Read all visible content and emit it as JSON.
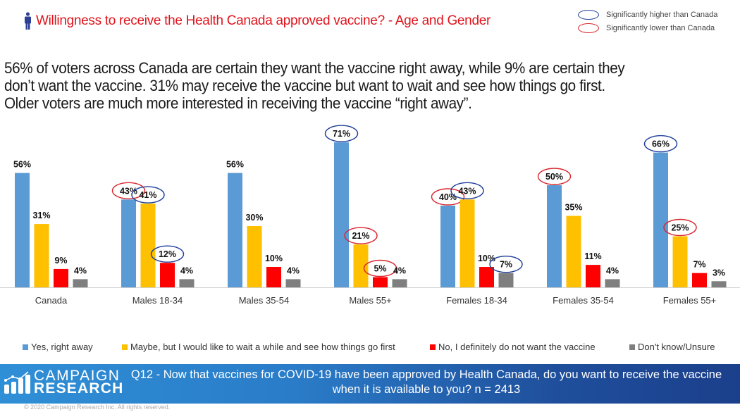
{
  "header": {
    "title": "Willingness to receive the Health Canada approved vaccine? - Age and Gender",
    "icon": "person-icon"
  },
  "significance_legend": {
    "higher": {
      "label": "Significantly higher than Canada",
      "color": "#1f3f9a"
    },
    "lower": {
      "label": "Significantly lower than Canada",
      "color": "#d9262e"
    }
  },
  "summary": [
    "56% of voters across Canada are certain they want the vaccine right away, while 9% are certain they",
    "don’t want the vaccine. 31% may receive the vaccine but want to wait and see how things go first.",
    "Older voters are much more interested in receiving the vaccine “right away”."
  ],
  "chart_data": {
    "type": "bar",
    "title": "Willingness to receive the Health Canada approved vaccine? - Age and Gender",
    "xlabel": "",
    "ylabel": "",
    "ylim": [
      0,
      75
    ],
    "grid": false,
    "legend_position": "bottom",
    "categories": [
      "Canada",
      "Males 18-34",
      "Males 35-54",
      "Males 55+",
      "Females 18-34",
      "Females 35-54",
      "Females 55+"
    ],
    "series": [
      {
        "name": "Yes, right away",
        "color": "#5b9bd5",
        "values": [
          56,
          43,
          56,
          71,
          40,
          50,
          66
        ],
        "significance": [
          null,
          "lower",
          null,
          "higher",
          "lower",
          "lower",
          "higher"
        ]
      },
      {
        "name": "Maybe, but I would like to wait a while and see how things go first",
        "color": "#ffc000",
        "values": [
          31,
          41,
          30,
          21,
          43,
          35,
          25
        ],
        "significance": [
          null,
          "higher",
          null,
          "lower",
          "higher",
          null,
          "lower"
        ]
      },
      {
        "name": "No, I definitely do not want the vaccine",
        "color": "#ff0000",
        "values": [
          9,
          12,
          10,
          5,
          10,
          11,
          7
        ],
        "significance": [
          null,
          "higher",
          null,
          "lower",
          null,
          null,
          null
        ]
      },
      {
        "name": "Don't know/Unsure",
        "color": "#7f7f7f",
        "values": [
          4,
          4,
          4,
          4,
          7,
          4,
          3
        ],
        "significance": [
          null,
          null,
          null,
          null,
          "higher",
          null,
          null
        ]
      }
    ],
    "value_suffix": "%"
  },
  "footer": {
    "logo_line1": "CAMPAIGN",
    "logo_line2": "RESEARCH",
    "question_line1": "Q12 - Now that vaccines for COVID-19 have been approved by Health Canada, do you want to receive the vaccine",
    "question_line2": "when it is available to you? n = 2413",
    "copyright": "© 2020 Campaign Research Inc. All rights reserved."
  }
}
